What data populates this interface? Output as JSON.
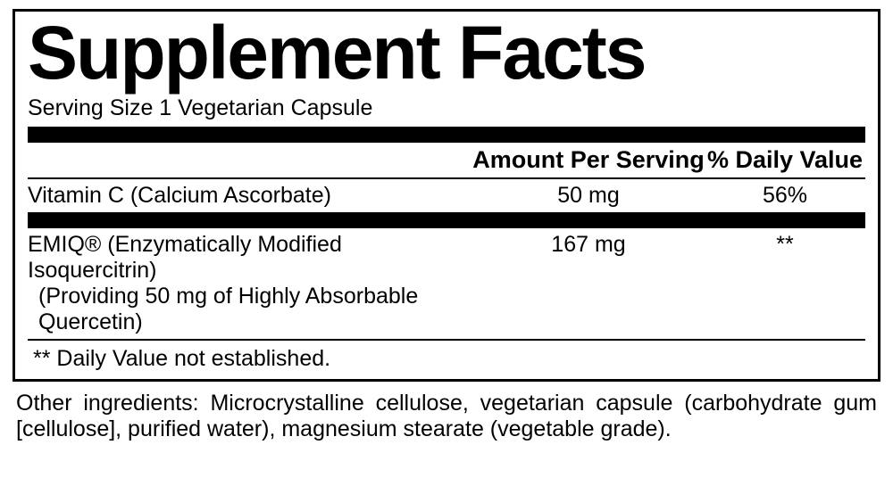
{
  "title": "Supplement Facts",
  "title_fontsize": 84,
  "serving_size": "Serving Size 1 Vegetarian Capsule",
  "body_fontsize": 25,
  "header_fontsize": 27,
  "thick_rule_height": 18,
  "columns": {
    "amount_label": "Amount Per Serving",
    "dv_label": "% Daily Value"
  },
  "rows": [
    {
      "name": "Vitamin C (Calcium Ascorbate)",
      "amount": "50 mg",
      "dv": "56%",
      "sub": null
    },
    {
      "name": "EMIQ® (Enzymatically Modified Isoquercitrin)",
      "amount": "167 mg",
      "dv": "**",
      "sub": "(Providing 50 mg of Highly Absorbable Quercetin)"
    }
  ],
  "daily_value_note": "** Daily Value not established.",
  "other_ingredients": "Other ingredients: Microcrystalline cellulose, vegetarian capsule (carbohydrate gum [cellulose], purified water), magnesium stearate (vegetable grade).",
  "colors": {
    "text": "#000000",
    "background": "#ffffff",
    "rule": "#000000"
  }
}
